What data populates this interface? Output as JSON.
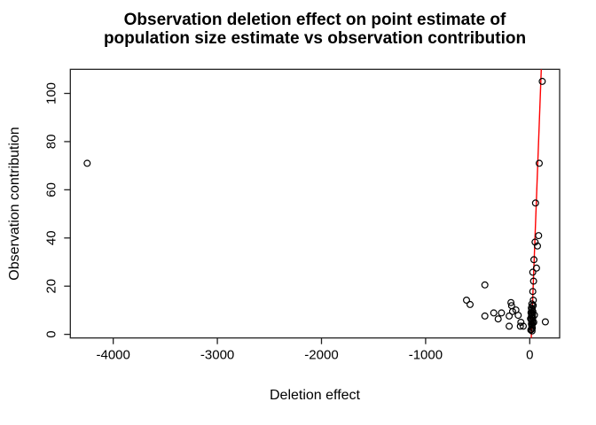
{
  "title": {
    "line1": "Observation deletion effect on point estimate of",
    "line2": "population size estimate vs observation contribution"
  },
  "chart_data": {
    "type": "scatter",
    "title": "Observation deletion effect on point estimate of population size estimate vs observation contribution",
    "xlabel": "Deletion effect",
    "ylabel": "Observation contribution",
    "xlim": [
      -4412,
      287
    ],
    "ylim": [
      -1.5,
      110
    ],
    "grid": false,
    "legend": null,
    "x_ticks": [
      -4000,
      -3000,
      -2000,
      -1000,
      0
    ],
    "x_tick_labels": [
      "-4000",
      "-3000",
      "-2000",
      "-1000",
      "0"
    ],
    "y_ticks": [
      0,
      20,
      40,
      60,
      80,
      100
    ],
    "y_tick_labels": [
      "0",
      "20",
      "40",
      "60",
      "80",
      "100"
    ],
    "point_style": {
      "marker": "open-circle",
      "color": "#000000",
      "radius": 3.4,
      "stroke_width": 1.2
    },
    "fit_line": {
      "x1": 14.5,
      "y1": -1.5,
      "x2": 110.7,
      "y2": 110,
      "color": "#ff0000",
      "width": 1.4
    },
    "points": [
      [
        -4250,
        71
      ],
      [
        -607,
        14.2
      ],
      [
        -573,
        12.4
      ],
      [
        -431,
        20.5
      ],
      [
        -431,
        7.6
      ],
      [
        -346,
        8.9
      ],
      [
        -303,
        6.4
      ],
      [
        -272,
        8.9
      ],
      [
        -198,
        7.6
      ],
      [
        -198,
        3.4
      ],
      [
        -181,
        13.2
      ],
      [
        -175,
        11.9
      ],
      [
        -165,
        9.5
      ],
      [
        -133,
        10.1
      ],
      [
        -111,
        7.9
      ],
      [
        -90,
        3.4
      ],
      [
        -85,
        5.0
      ],
      [
        -62,
        3.4
      ],
      [
        120,
        105
      ],
      [
        91,
        71
      ],
      [
        55,
        54.5
      ],
      [
        85,
        41
      ],
      [
        51,
        38.3
      ],
      [
        74,
        36.7
      ],
      [
        40,
        31
      ],
      [
        65,
        27.5
      ],
      [
        29,
        25.8
      ],
      [
        37,
        22.1
      ],
      [
        29,
        17.8
      ],
      [
        34,
        14.2
      ],
      [
        150,
        5.2
      ],
      [
        20,
        12.6
      ],
      [
        28,
        11.8
      ],
      [
        15,
        11.0
      ],
      [
        24,
        10.5
      ],
      [
        19,
        10.0
      ],
      [
        30,
        9.5
      ],
      [
        12,
        9.0
      ],
      [
        22,
        8.8
      ],
      [
        26,
        8.2
      ],
      [
        17,
        7.8
      ],
      [
        21,
        7.2
      ],
      [
        29,
        6.8
      ],
      [
        14,
        6.3
      ],
      [
        24,
        5.8
      ],
      [
        19,
        5.3
      ],
      [
        27,
        4.8
      ],
      [
        16,
        4.3
      ],
      [
        22,
        3.8
      ],
      [
        20,
        3.2
      ],
      [
        25,
        2.6
      ],
      [
        17,
        2.1
      ],
      [
        22,
        1.4
      ],
      [
        45,
        8.0
      ],
      [
        38,
        5.0
      ],
      [
        10,
        1.8
      ],
      [
        33,
        12.0
      ],
      [
        8,
        6.5
      ]
    ],
    "colors": {
      "axis": "#222222",
      "text": "#000000",
      "background": "#ffffff"
    }
  }
}
